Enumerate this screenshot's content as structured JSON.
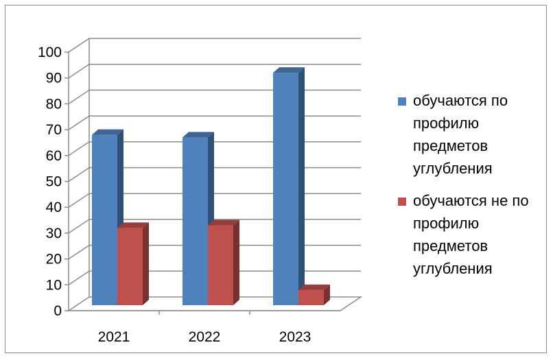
{
  "chart_data": {
    "type": "bar",
    "title": "",
    "xlabel": "",
    "ylabel": "",
    "categories": [
      "2021",
      "2022",
      "2023"
    ],
    "ylim": [
      0,
      100
    ],
    "yticks": [
      0,
      10,
      20,
      30,
      40,
      50,
      60,
      70,
      80,
      90,
      100
    ],
    "grid": true,
    "legend_position": "right",
    "style": "3d-clustered-column",
    "series": [
      {
        "name": "обучаются по профилю предметов углубления",
        "color": "#4f81bd",
        "values": [
          68,
          67,
          92
        ]
      },
      {
        "name": "обучаются не по профилю предметов углубления",
        "color": "#c0504d",
        "values": [
          32,
          33,
          8
        ]
      }
    ]
  }
}
